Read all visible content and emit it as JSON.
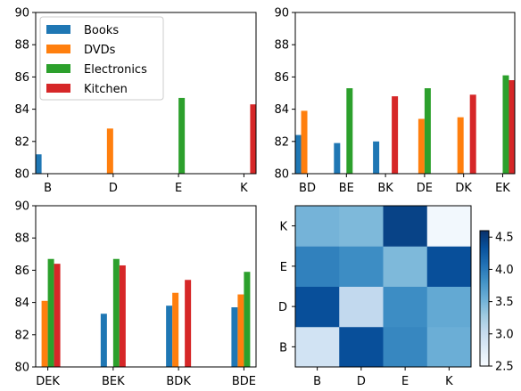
{
  "chart_data": [
    {
      "type": "bar",
      "categories": [
        "B",
        "D",
        "E",
        "K"
      ],
      "series": [
        {
          "name": "Books",
          "values": [
            81.2,
            null,
            null,
            null
          ]
        },
        {
          "name": "DVDs",
          "values": [
            null,
            82.8,
            null,
            null
          ]
        },
        {
          "name": "Electronics",
          "values": [
            null,
            null,
            84.7,
            null
          ]
        },
        {
          "name": "Kitchen",
          "values": [
            null,
            null,
            null,
            84.3
          ]
        }
      ],
      "ylim": [
        80,
        90
      ],
      "yticks": [
        80,
        82,
        84,
        86,
        88,
        90
      ],
      "legend": "upper-left"
    },
    {
      "type": "bar",
      "categories": [
        "BD",
        "BE",
        "BK",
        "DE",
        "DK",
        "EK"
      ],
      "series": [
        {
          "name": "Books",
          "values": [
            82.4,
            81.9,
            82.0,
            null,
            null,
            null
          ]
        },
        {
          "name": "DVDs",
          "values": [
            83.9,
            null,
            null,
            83.4,
            83.5,
            null
          ]
        },
        {
          "name": "Electronics",
          "values": [
            null,
            85.3,
            null,
            85.3,
            null,
            86.1
          ]
        },
        {
          "name": "Kitchen",
          "values": [
            null,
            null,
            84.8,
            null,
            84.9,
            85.8
          ]
        }
      ],
      "ylim": [
        80,
        90
      ],
      "yticks": [
        80,
        82,
        84,
        86,
        88,
        90
      ]
    },
    {
      "type": "bar",
      "categories": [
        "DEK",
        "BEK",
        "BDK",
        "BDE"
      ],
      "series": [
        {
          "name": "Books",
          "values": [
            null,
            83.3,
            83.8,
            83.7
          ]
        },
        {
          "name": "DVDs",
          "values": [
            84.1,
            null,
            84.6,
            84.5
          ]
        },
        {
          "name": "Electronics",
          "values": [
            86.7,
            86.7,
            null,
            85.9
          ]
        },
        {
          "name": "Kitchen",
          "values": [
            86.4,
            86.3,
            85.4,
            null
          ]
        }
      ],
      "ylim": [
        80,
        90
      ],
      "yticks": [
        80,
        82,
        84,
        86,
        88,
        90
      ]
    },
    {
      "type": "heatmap",
      "x": [
        "B",
        "D",
        "E",
        "K"
      ],
      "y": [
        "B",
        "D",
        "E",
        "K"
      ],
      "values": [
        [
          2.9,
          4.35,
          3.9,
          3.55
        ],
        [
          4.35,
          3.05,
          3.85,
          3.6
        ],
        [
          3.95,
          3.85,
          3.45,
          4.35
        ],
        [
          3.5,
          3.45,
          4.45,
          2.55
        ]
      ],
      "colorbar": {
        "range": [
          2.5,
          4.6
        ],
        "ticks": [
          2.5,
          3.0,
          3.5,
          4.0,
          4.5
        ]
      }
    }
  ],
  "colors": {
    "Books": "#1f77b4",
    "DVDs": "#ff7f0e",
    "Electronics": "#2ca02c",
    "Kitchen": "#d62728",
    "cmap_low": "#f7fbff",
    "cmap_high": "#08306b"
  }
}
